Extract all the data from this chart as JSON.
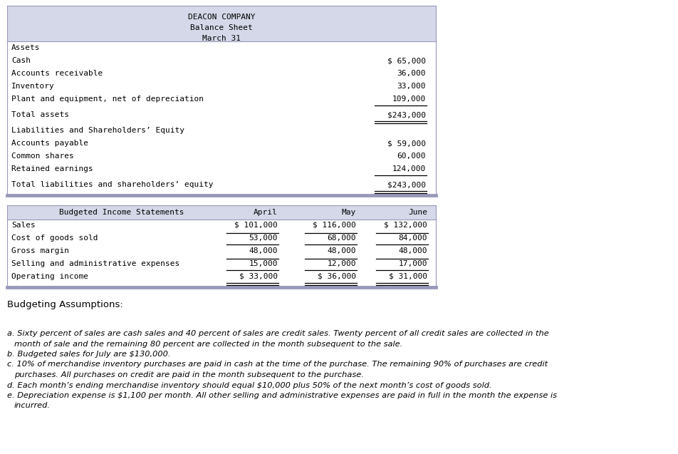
{
  "bg_color": "#ffffff",
  "header_bg": "#d5d8e8",
  "table_edge": "#9999bb",
  "balance_sheet": {
    "title": [
      "DEACON COMPANY",
      "Balance Sheet",
      "March 31"
    ],
    "assets_header": "Assets",
    "items": [
      {
        "label": "Cash",
        "value": "$ 65,000",
        "ul": false,
        "dul": false
      },
      {
        "label": "Accounts receivable",
        "value": "36,000",
        "ul": false,
        "dul": false
      },
      {
        "label": "Inventory",
        "value": "33,000",
        "ul": false,
        "dul": false
      },
      {
        "label": "Plant and equipment, net of depreciation",
        "value": "109,000",
        "ul": true,
        "dul": false
      },
      {
        "label": "Total assets",
        "value": "$243,000",
        "ul": true,
        "dul": true,
        "extra_before": true
      },
      {
        "label": "Liabilities and Shareholders’ Equity",
        "value": "",
        "ul": false,
        "dul": false,
        "extra_before": true
      },
      {
        "label": "Accounts payable",
        "value": "$ 59,000",
        "ul": false,
        "dul": false
      },
      {
        "label": "Common shares",
        "value": "60,000",
        "ul": false,
        "dul": false
      },
      {
        "label": "Retained earnings",
        "value": "124,000",
        "ul": true,
        "dul": false
      },
      {
        "label": "Total liabilities and shareholders’ equity",
        "value": "$243,000",
        "ul": true,
        "dul": true,
        "extra_before": true
      }
    ]
  },
  "income_statement": {
    "header": [
      "Budgeted Income Statements",
      "April",
      "May",
      "June"
    ],
    "rows": [
      {
        "label": "Sales",
        "values": [
          "$ 101,000",
          "$ 116,000",
          "$ 132,000"
        ],
        "ul": false,
        "dul": false,
        "top_ul": false
      },
      {
        "label": "Cost of goods sold",
        "values": [
          "53,000",
          "68,000",
          "84,000"
        ],
        "ul": true,
        "dul": false,
        "top_ul": true
      },
      {
        "label": "Gross margin",
        "values": [
          "48,000",
          "48,000",
          "48,000"
        ],
        "ul": false,
        "dul": false,
        "top_ul": false
      },
      {
        "label": "Selling and administrative expenses",
        "values": [
          "15,000",
          "12,000",
          "17,000"
        ],
        "ul": true,
        "dul": false,
        "top_ul": true
      },
      {
        "label": "Operating income",
        "values": [
          "$ 33,000",
          "$ 36,000",
          "$ 31,000"
        ],
        "ul": true,
        "dul": true,
        "top_ul": false
      }
    ]
  },
  "assumptions_title": "Budgeting Assumptions:",
  "assumptions": [
    {
      "key": "a.",
      "line1": "a. Sixty percent of sales are cash sales and 40 percent of sales are credit sales. Twenty percent of all credit sales are collected in the",
      "line2": "   month of sale and the remaining 80 percent are collected in the month subsequent to the sale."
    },
    {
      "key": "b.",
      "line1": "b. Budgeted sales for July are $130,000.",
      "line2": ""
    },
    {
      "key": "c.",
      "line1": "c. 10% of merchandise inventory purchases are paid in cash at the time of the purchase. The remaining 90% of purchases are credit",
      "line2": "   purchases. All purchases on credit are paid in the month subsequent to the purchase."
    },
    {
      "key": "d.",
      "line1": "d. Each month’s ending merchandise inventory should equal $10,000 plus 50% of the next month’s cost of goods sold.",
      "line2": ""
    },
    {
      "key": "e.",
      "line1": "e. Depreciation expense is $1,100 per month. All other selling and administrative expenses are paid in full in the month the expense is",
      "line2": "   incurred."
    }
  ]
}
